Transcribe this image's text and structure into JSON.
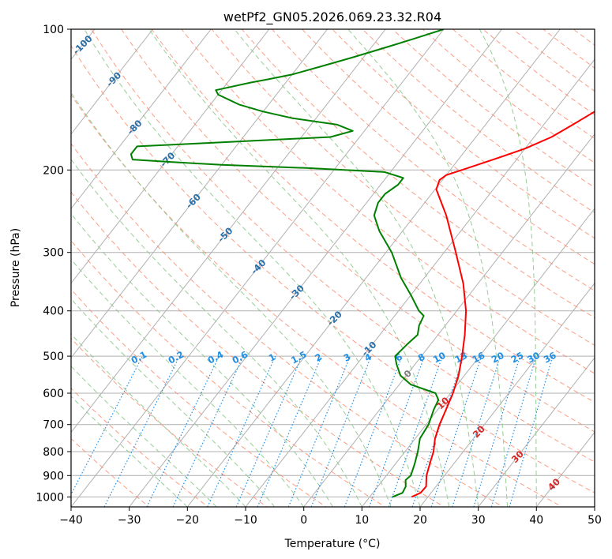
{
  "chart_data": {
    "type": "line",
    "title": "wetPf2_GN05.2026.069.23.32.R04",
    "xlabel": "Temperature (°C)",
    "ylabel": "Pressure (hPa)",
    "xlim": [
      -40,
      50
    ],
    "ylim": [
      1050,
      100
    ],
    "y_scale": "log",
    "x_ticks": [
      -40,
      -30,
      -20,
      -10,
      0,
      10,
      20,
      30,
      40,
      50
    ],
    "y_ticks": [
      1000,
      900,
      800,
      700,
      600,
      500,
      400,
      300,
      200,
      100
    ],
    "grid": true,
    "colors": {
      "temperature": "#ff0000",
      "dewpoint": "#008000",
      "isotherm": "#b0b0b0",
      "dry_adiabat": "#fa8c6e",
      "moist_adiabat": "#8cc88c",
      "mixing_ratio": "#1f8fe6",
      "wetbulb_label_blue": "#2a6fa8",
      "wetbulb_label_red": "#d62728"
    },
    "series": [
      {
        "key": "temperature",
        "points": [
          [
            1000,
            17.2
          ],
          [
            980,
            18.2
          ],
          [
            950,
            18.3
          ],
          [
            900,
            16.9
          ],
          [
            850,
            15.9
          ],
          [
            800,
            14.9
          ],
          [
            750,
            13.4
          ],
          [
            700,
            12.3
          ],
          [
            650,
            11.4
          ],
          [
            600,
            10.4
          ],
          [
            550,
            9.0
          ],
          [
            500,
            7.0
          ],
          [
            450,
            4.6
          ],
          [
            400,
            1.6
          ],
          [
            350,
            -2.5
          ],
          [
            300,
            -8.0
          ],
          [
            250,
            -14.6
          ],
          [
            220,
            -19.8
          ],
          [
            210,
            -20.5
          ],
          [
            205,
            -20.0
          ],
          [
            200,
            -18.0
          ],
          [
            190,
            -14.0
          ],
          [
            180,
            -10.0
          ],
          [
            170,
            -7.0
          ],
          [
            160,
            -5.0
          ],
          [
            150,
            -3.0
          ],
          [
            140,
            -1.5
          ],
          [
            130,
            -0.5
          ],
          [
            120,
            -0.5
          ],
          [
            115,
            -1.0
          ],
          [
            110,
            0.0
          ],
          [
            100,
            2.0
          ]
        ]
      },
      {
        "key": "dewpoint",
        "points": [
          [
            1000,
            13.9
          ],
          [
            980,
            15.1
          ],
          [
            950,
            14.8
          ],
          [
            920,
            13.9
          ],
          [
            900,
            14.2
          ],
          [
            850,
            13.3
          ],
          [
            800,
            12.2
          ],
          [
            750,
            10.8
          ],
          [
            700,
            10.4
          ],
          [
            650,
            9.3
          ],
          [
            620,
            8.8
          ],
          [
            600,
            7.4
          ],
          [
            575,
            2.0
          ],
          [
            550,
            -1.0
          ],
          [
            520,
            -3.2
          ],
          [
            500,
            -4.5
          ],
          [
            470,
            -4.0
          ],
          [
            450,
            -3.5
          ],
          [
            430,
            -4.5
          ],
          [
            410,
            -5.0
          ],
          [
            400,
            -6.5
          ],
          [
            370,
            -10.0
          ],
          [
            340,
            -14.0
          ],
          [
            300,
            -19.0
          ],
          [
            270,
            -24.0
          ],
          [
            250,
            -27.0
          ],
          [
            235,
            -28.0
          ],
          [
            225,
            -28.0
          ],
          [
            215,
            -27.0
          ],
          [
            208,
            -27.0
          ],
          [
            202,
            -31.0
          ],
          [
            198,
            -45.0
          ],
          [
            195,
            -60.0
          ],
          [
            192,
            -70.0
          ],
          [
            190,
            -76.0
          ],
          [
            185,
            -77.0
          ],
          [
            178,
            -77.0
          ],
          [
            175,
            -65.0
          ],
          [
            170,
            -45.0
          ],
          [
            165,
            -42.0
          ],
          [
            160,
            -45.5
          ],
          [
            155,
            -54.0
          ],
          [
            150,
            -60.0
          ],
          [
            145,
            -65.0
          ],
          [
            138,
            -70.0
          ],
          [
            135,
            -71.0
          ],
          [
            130,
            -66.0
          ],
          [
            128,
            -63.5
          ],
          [
            125,
            -60.0
          ],
          [
            120,
            -56.0
          ],
          [
            115,
            -52.0
          ],
          [
            110,
            -48.0
          ],
          [
            105,
            -44.0
          ],
          [
            100,
            -40.0
          ]
        ]
      }
    ],
    "wetbulb_labels": [
      {
        "p": 108,
        "text": "-100"
      },
      {
        "p": 128,
        "text": "-90"
      },
      {
        "p": 162,
        "text": "-80"
      },
      {
        "p": 190,
        "text": "-70"
      },
      {
        "p": 233,
        "text": "-60"
      },
      {
        "p": 275,
        "text": "-50"
      },
      {
        "p": 322,
        "text": "-40"
      },
      {
        "p": 365,
        "text": "-30"
      },
      {
        "p": 415,
        "text": "-20"
      },
      {
        "p": 482,
        "text": "-10"
      },
      {
        "p": 545,
        "text": "0"
      },
      {
        "p": 630,
        "text": "10"
      },
      {
        "p": 725,
        "text": "20"
      },
      {
        "p": 820,
        "text": "30"
      },
      {
        "p": 940,
        "text": "40"
      }
    ],
    "mixing_ratio_labels": [
      "0.1",
      "0.2",
      "0.4",
      "0.6",
      "1",
      "1.5",
      "2",
      "3",
      "4",
      "6",
      "8",
      "10",
      "13",
      "16",
      "20",
      "25",
      "30",
      "36"
    ]
  }
}
